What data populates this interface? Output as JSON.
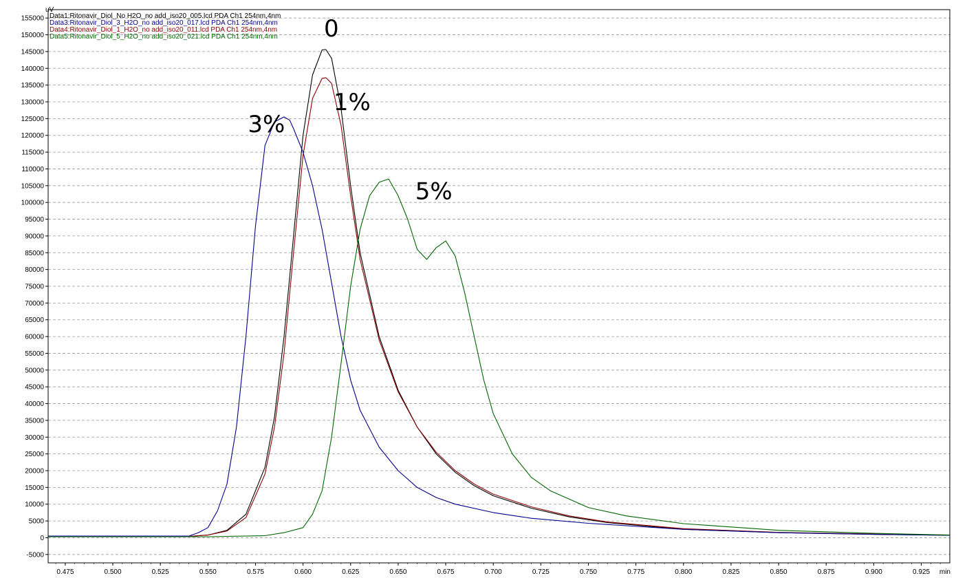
{
  "chart_data": {
    "type": "line",
    "title": "",
    "ylabel": "uV",
    "xlabel": "min",
    "xlim": [
      0.466,
      0.94
    ],
    "ylim": [
      -7500,
      157500
    ],
    "grid": true,
    "x_ticks": [
      "0.475",
      "0.500",
      "0.525",
      "0.550",
      "0.575",
      "0.600",
      "0.625",
      "0.650",
      "0.675",
      "0.700",
      "0.725",
      "0.750",
      "0.775",
      "0.800",
      "0.825",
      "0.850",
      "0.875",
      "0.900",
      "0.925"
    ],
    "y_ticks": [
      "-5000",
      "0",
      "5000",
      "10000",
      "15000",
      "20000",
      "25000",
      "30000",
      "35000",
      "40000",
      "45000",
      "50000",
      "55000",
      "60000",
      "65000",
      "70000",
      "75000",
      "80000",
      "85000",
      "90000",
      "95000",
      "100000",
      "105000",
      "110000",
      "115000",
      "120000",
      "125000",
      "130000",
      "135000",
      "140000",
      "145000",
      "150000",
      "155000"
    ],
    "legend": [
      {
        "text": "Data1:Ritonavir_Diol_No H2O_no add_iso20_005.lcd PDA Ch1 254nm,4nm",
        "color": "#000000"
      },
      {
        "text": "Data3:Ritonavir_Diol_3_H2O_no add_iso20_017.lcd PDA Ch1 254nm,4nm",
        "color": "#00008b"
      },
      {
        "text": "Data4:Ritonavir_Diol_1_H2O_no add_iso20_011.lcd PDA Ch1 254nm,4nm",
        "color": "#8b0000"
      },
      {
        "text": "Data5:Ritonavir_Diol_5_H2O_no add_iso20_021.lcd PDA Ch1 254nm,4nm",
        "color": "#006400"
      }
    ],
    "annotations": [
      {
        "text": "0",
        "x": 0.611,
        "y": 149500
      },
      {
        "text": "1%",
        "x": 0.616,
        "y": 127500
      },
      {
        "text": "3%",
        "x": 0.571,
        "y": 121000
      },
      {
        "text": "5%",
        "x": 0.659,
        "y": 101000
      }
    ],
    "series": [
      {
        "color": "#000000",
        "x": [
          0.466,
          0.5,
          0.54,
          0.55,
          0.56,
          0.57,
          0.58,
          0.585,
          0.59,
          0.595,
          0.6,
          0.605,
          0.61,
          0.612,
          0.615,
          0.62,
          0.625,
          0.63,
          0.64,
          0.65,
          0.66,
          0.67,
          0.68,
          0.69,
          0.7,
          0.72,
          0.74,
          0.76,
          0.8,
          0.85,
          0.9,
          0.94
        ],
        "y": [
          500,
          500,
          400,
          800,
          2200,
          7000,
          21000,
          36000,
          60000,
          90000,
          120000,
          138000,
          145500,
          145600,
          143000,
          128000,
          105000,
          85000,
          60000,
          44000,
          33000,
          25000,
          19500,
          15500,
          12500,
          8800,
          6200,
          4500,
          2500,
          1500,
          1000,
          700
        ]
      },
      {
        "color": "#8b0000",
        "x": [
          0.466,
          0.5,
          0.54,
          0.55,
          0.56,
          0.57,
          0.58,
          0.585,
          0.59,
          0.595,
          0.6,
          0.605,
          0.61,
          0.612,
          0.615,
          0.62,
          0.625,
          0.63,
          0.64,
          0.65,
          0.66,
          0.67,
          0.68,
          0.69,
          0.7,
          0.72,
          0.74,
          0.76,
          0.8,
          0.85,
          0.9,
          0.94
        ],
        "y": [
          500,
          500,
          400,
          800,
          2000,
          6000,
          19000,
          33000,
          55000,
          85000,
          114000,
          131000,
          137000,
          137200,
          135500,
          123000,
          102000,
          83000,
          59000,
          43500,
          33000,
          25500,
          20000,
          16000,
          13000,
          9200,
          6500,
          4700,
          2700,
          1600,
          1100,
          800
        ]
      },
      {
        "color": "#00008b",
        "x": [
          0.466,
          0.5,
          0.53,
          0.54,
          0.545,
          0.55,
          0.555,
          0.56,
          0.565,
          0.57,
          0.575,
          0.58,
          0.585,
          0.59,
          0.593,
          0.595,
          0.6,
          0.605,
          0.61,
          0.615,
          0.62,
          0.625,
          0.63,
          0.64,
          0.65,
          0.66,
          0.67,
          0.68,
          0.7,
          0.72,
          0.75,
          0.8,
          0.85,
          0.9,
          0.94
        ],
        "y": [
          500,
          500,
          500,
          500,
          1500,
          3000,
          8000,
          16000,
          33000,
          60000,
          93000,
          117000,
          124000,
          125500,
          124500,
          122000,
          115000,
          105000,
          92000,
          76000,
          60000,
          47000,
          38000,
          27000,
          20000,
          15000,
          12000,
          10000,
          7500,
          5800,
          4300,
          2500,
          1500,
          1000,
          700
        ]
      },
      {
        "color": "#006400",
        "x": [
          0.466,
          0.55,
          0.58,
          0.59,
          0.6,
          0.605,
          0.61,
          0.615,
          0.62,
          0.625,
          0.63,
          0.635,
          0.64,
          0.645,
          0.65,
          0.655,
          0.66,
          0.665,
          0.67,
          0.675,
          0.68,
          0.685,
          0.69,
          0.695,
          0.7,
          0.71,
          0.72,
          0.73,
          0.75,
          0.77,
          0.8,
          0.85,
          0.9,
          0.94
        ],
        "y": [
          300,
          300,
          600,
          1500,
          3000,
          7000,
          14000,
          30000,
          52000,
          75000,
          92000,
          102000,
          106000,
          107000,
          102000,
          95000,
          86000,
          83000,
          86500,
          88500,
          84000,
          73000,
          60000,
          47000,
          37000,
          25000,
          18000,
          14000,
          9000,
          6500,
          4200,
          2200,
          1300,
          800
        ]
      }
    ]
  }
}
